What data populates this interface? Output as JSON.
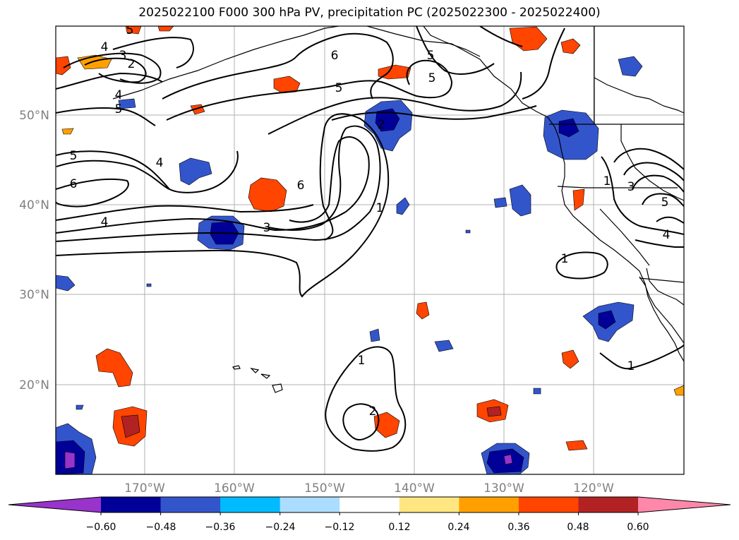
{
  "title": "2025022100 F000 300 hPa PV, precipitation PC (2025022300 - 2025022400)",
  "lat_labels": [
    "50°N",
    "40°N",
    "30°N",
    "20°N"
  ],
  "lon_labels": [
    "170°W",
    "160°W",
    "150°W",
    "140°W",
    "130°W",
    "120°W"
  ],
  "colorbar": {
    "ticks": [
      "−0.60",
      "−0.48",
      "−0.36",
      "−0.24",
      "−0.12",
      "0.12",
      "0.24",
      "0.36",
      "0.48",
      "0.60"
    ],
    "colors": [
      "#9933cc",
      "#000099",
      "#3355cc",
      "#00bbff",
      "#aaddff",
      "#ffffff",
      "#ffe680",
      "#ffa000",
      "#ff4500",
      "#b22222",
      "#ff88aa"
    ]
  },
  "contour_labels": [
    "5",
    "4",
    "3",
    "2",
    "4",
    "5",
    "5",
    "6",
    "4",
    "6",
    "4",
    "3",
    "6",
    "1",
    "5",
    "5",
    "6",
    "5",
    "1",
    "2",
    "3",
    "5",
    "4",
    "1",
    "1",
    "1",
    "2"
  ]
}
